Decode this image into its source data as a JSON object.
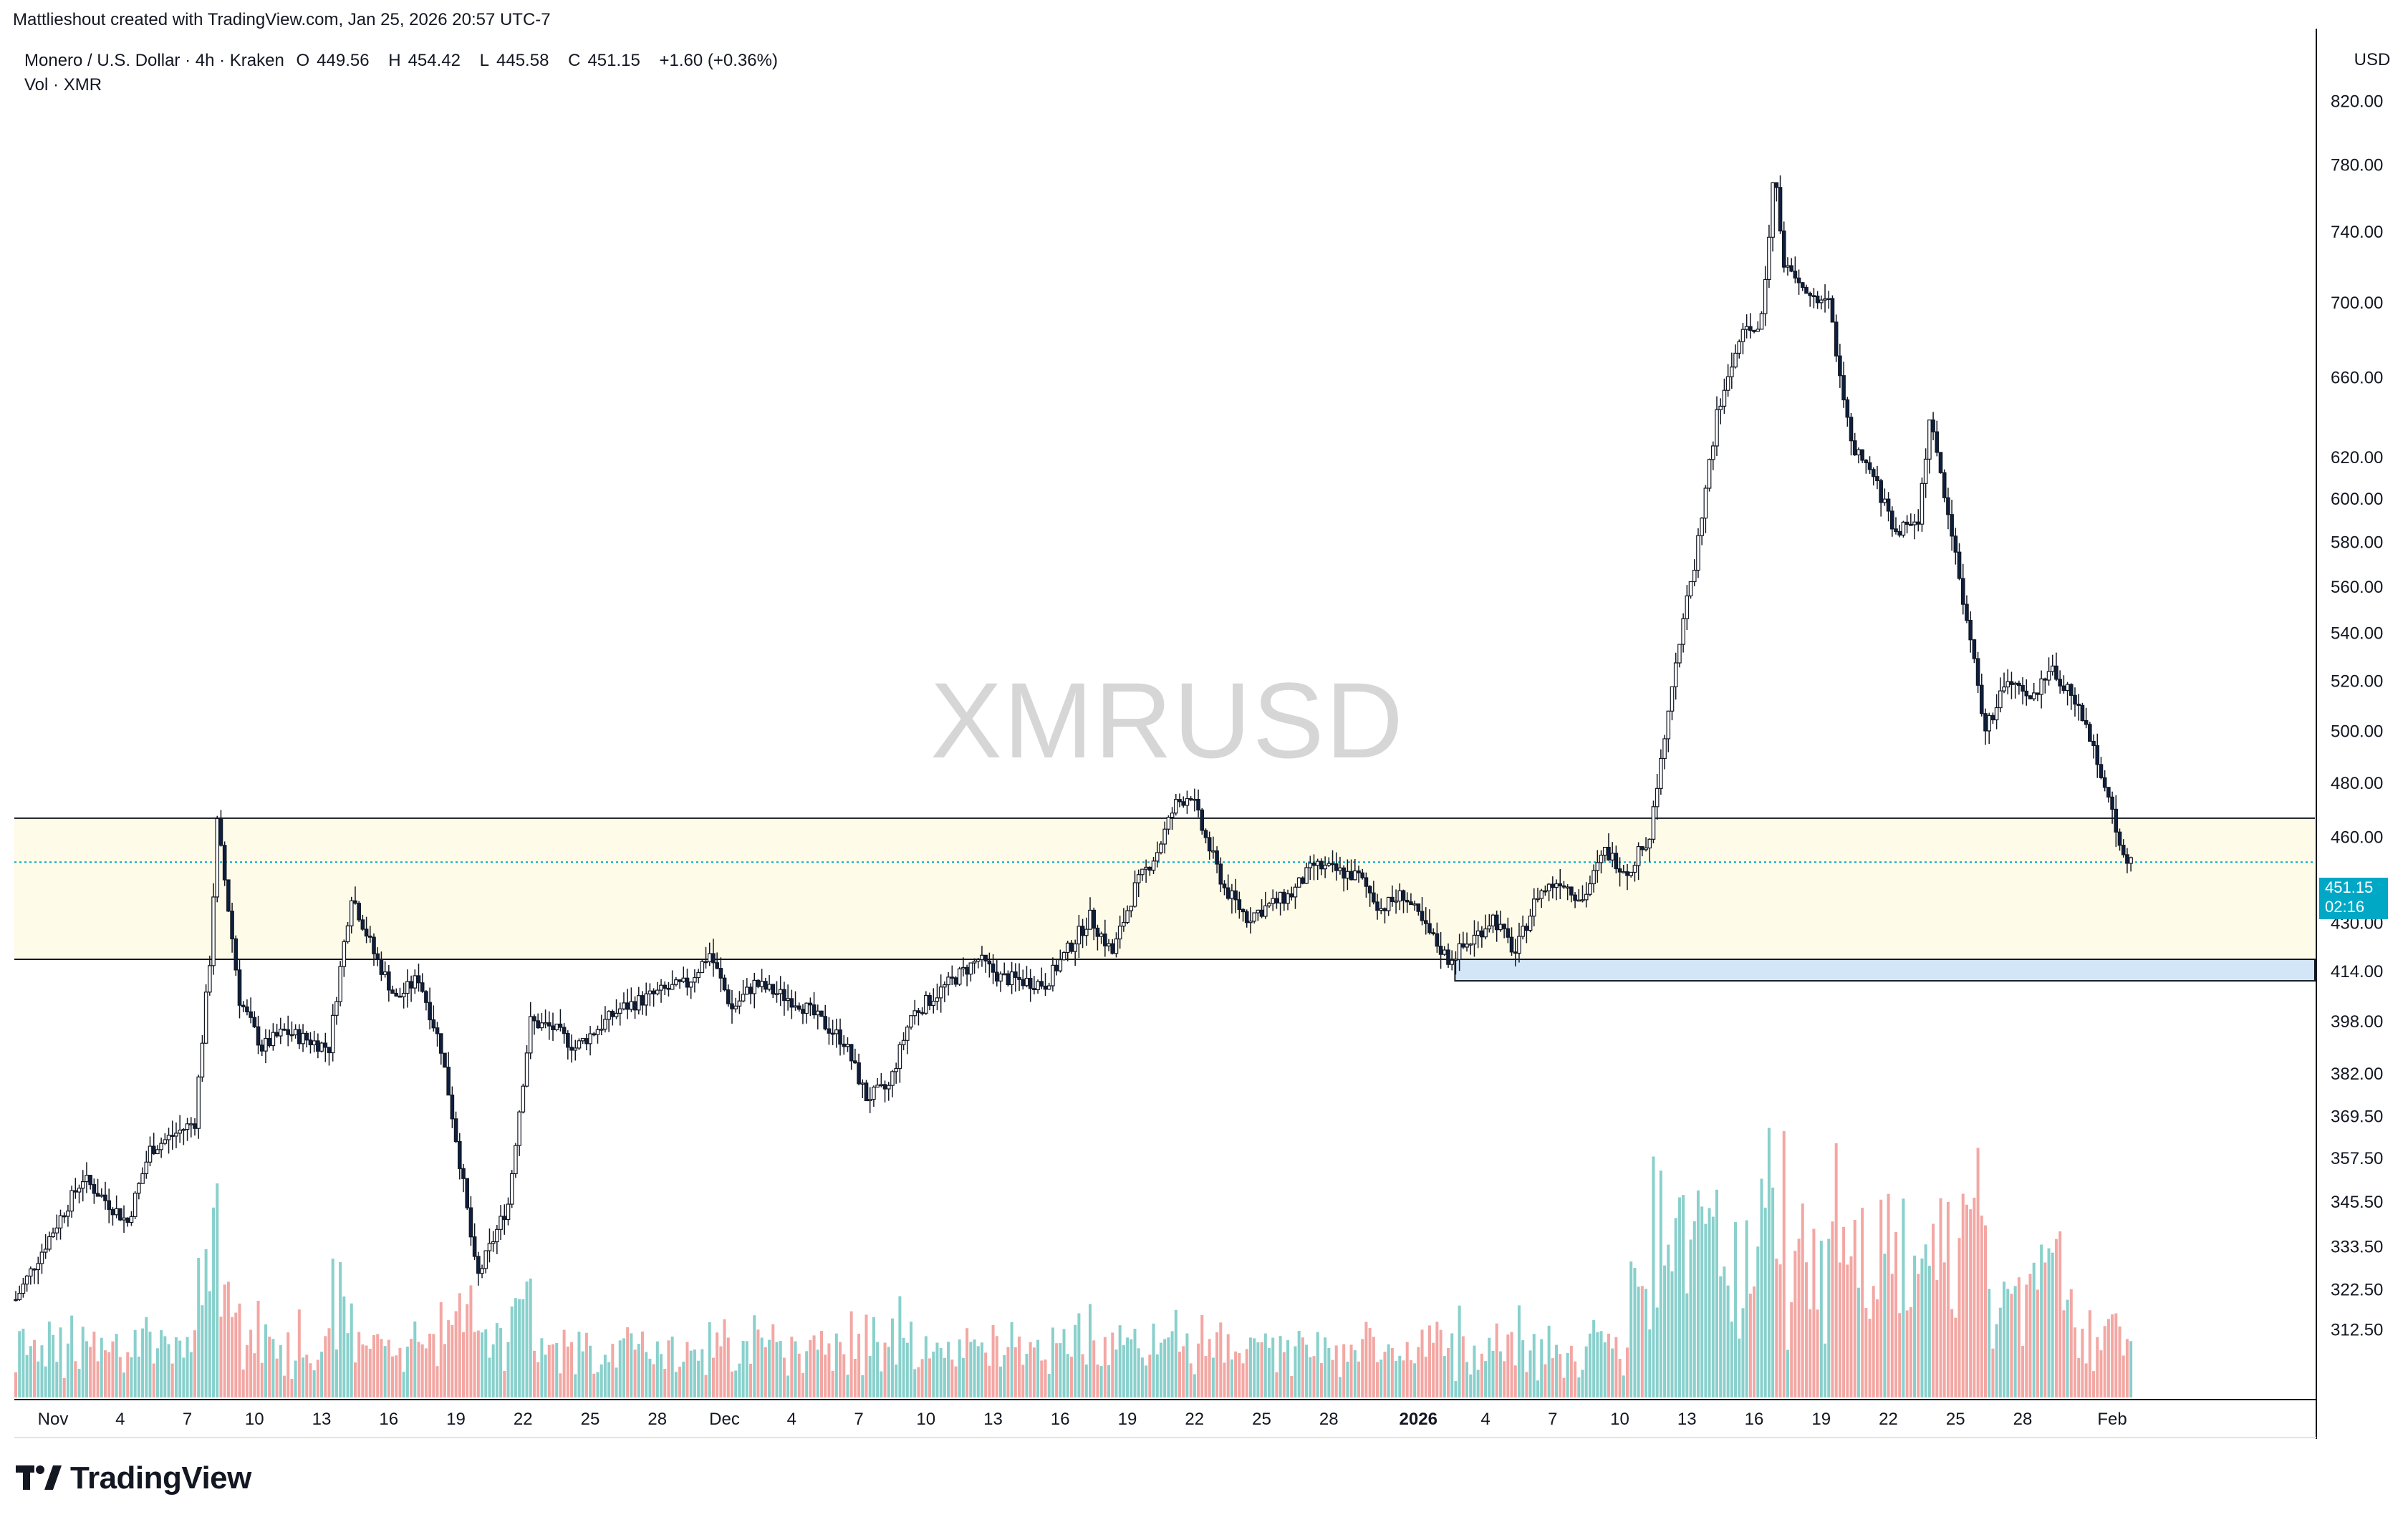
{
  "header": {
    "created_by": "Mattlieshout created with TradingView.com, Jan 25, 2026 20:57 UTC-7"
  },
  "legend": {
    "symbol": "Monero / U.S. Dollar · 4h · Kraken",
    "o_label": "O",
    "o_value": "449.56",
    "h_label": "H",
    "h_value": "454.42",
    "l_label": "L",
    "l_value": "445.58",
    "c_label": "C",
    "c_value": "451.15",
    "change": "+1.60 (+0.36%)",
    "volume": "Vol · XMR"
  },
  "watermark": "XMRUSD",
  "currency": "USD",
  "price_tag": {
    "price": "451.15",
    "countdown": "02:16"
  },
  "brand": {
    "name": "TradingView"
  },
  "colors": {
    "zone_fill": "#fffbe9",
    "support_box": "#d3e6f8",
    "price_line": "#00a8c6",
    "volume_up": "#89d0cc",
    "volume_down": "#f3a7a3",
    "candle_up": "#ffffff",
    "candle_down": "#0c1f3f"
  },
  "chart_data": {
    "type": "candlestick",
    "title": "XMRUSD",
    "timeframe": "4h",
    "ylim": [
      300,
      830
    ],
    "y_scale": "log",
    "y_ticks": [
      "820.00",
      "780.00",
      "740.00",
      "700.00",
      "660.00",
      "620.00",
      "600.00",
      "580.00",
      "560.00",
      "540.00",
      "520.00",
      "500.00",
      "480.00",
      "460.00",
      "430.00",
      "414.00",
      "398.00",
      "382.00",
      "369.50",
      "357.50",
      "345.50",
      "333.50",
      "322.50",
      "312.50"
    ],
    "x_ticks": [
      "Nov",
      "4",
      "7",
      "10",
      "13",
      "16",
      "19",
      "22",
      "25",
      "28",
      "Dec",
      "4",
      "7",
      "10",
      "13",
      "16",
      "19",
      "22",
      "25",
      "28",
      "2026",
      "4",
      "7",
      "10",
      "13",
      "16",
      "19",
      "22",
      "25",
      "28",
      "Feb"
    ],
    "zone": {
      "top": 467,
      "bottom": 418
    },
    "support_box": {
      "top": 418,
      "bottom": 411
    },
    "last_price": 451.15,
    "price_path": [
      {
        "day": 0,
        "price": 320
      },
      {
        "day": 3,
        "price": 352
      },
      {
        "day": 5,
        "price": 340
      },
      {
        "day": 6,
        "price": 360
      },
      {
        "day": 8,
        "price": 368
      },
      {
        "day": 8.7,
        "price": 420
      },
      {
        "day": 9,
        "price": 465
      },
      {
        "day": 10,
        "price": 405
      },
      {
        "day": 11,
        "price": 390
      },
      {
        "day": 12,
        "price": 395
      },
      {
        "day": 14,
        "price": 390
      },
      {
        "day": 15,
        "price": 440
      },
      {
        "day": 16,
        "price": 420
      },
      {
        "day": 17,
        "price": 405
      },
      {
        "day": 18,
        "price": 412
      },
      {
        "day": 19,
        "price": 390
      },
      {
        "day": 20,
        "price": 350
      },
      {
        "day": 20.6,
        "price": 325
      },
      {
        "day": 22,
        "price": 345
      },
      {
        "day": 23,
        "price": 398
      },
      {
        "day": 24,
        "price": 396
      },
      {
        "day": 25,
        "price": 390
      },
      {
        "day": 27,
        "price": 402
      },
      {
        "day": 29,
        "price": 408
      },
      {
        "day": 30,
        "price": 410
      },
      {
        "day": 31,
        "price": 420
      },
      {
        "day": 32,
        "price": 402
      },
      {
        "day": 33,
        "price": 410
      },
      {
        "day": 35,
        "price": 404
      },
      {
        "day": 37,
        "price": 392
      },
      {
        "day": 38,
        "price": 375
      },
      {
        "day": 39,
        "price": 378
      },
      {
        "day": 40,
        "price": 400
      },
      {
        "day": 42,
        "price": 412
      },
      {
        "day": 43,
        "price": 418
      },
      {
        "day": 44,
        "price": 412
      },
      {
        "day": 46,
        "price": 410
      },
      {
        "day": 48,
        "price": 432
      },
      {
        "day": 49,
        "price": 420
      },
      {
        "day": 50,
        "price": 442
      },
      {
        "day": 51,
        "price": 455
      },
      {
        "day": 51.8,
        "price": 472
      },
      {
        "day": 52.5,
        "price": 476
      },
      {
        "day": 53,
        "price": 463
      },
      {
        "day": 54,
        "price": 442
      },
      {
        "day": 55,
        "price": 432
      },
      {
        "day": 57,
        "price": 440
      },
      {
        "day": 58,
        "price": 450
      },
      {
        "day": 59,
        "price": 448
      },
      {
        "day": 60,
        "price": 446
      },
      {
        "day": 61,
        "price": 435
      },
      {
        "day": 62,
        "price": 440
      },
      {
        "day": 63,
        "price": 428
      },
      {
        "day": 64,
        "price": 418
      },
      {
        "day": 65,
        "price": 424
      },
      {
        "day": 66,
        "price": 432
      },
      {
        "day": 67,
        "price": 420
      },
      {
        "day": 68,
        "price": 440
      },
      {
        "day": 69,
        "price": 445
      },
      {
        "day": 70,
        "price": 438
      },
      {
        "day": 71,
        "price": 455
      },
      {
        "day": 72,
        "price": 448
      },
      {
        "day": 73,
        "price": 460
      },
      {
        "day": 74,
        "price": 520
      },
      {
        "day": 75,
        "price": 570
      },
      {
        "day": 76,
        "price": 640
      },
      {
        "day": 77,
        "price": 680
      },
      {
        "day": 78,
        "price": 690
      },
      {
        "day": 78.6,
        "price": 780
      },
      {
        "day": 79,
        "price": 720
      },
      {
        "day": 80,
        "price": 705
      },
      {
        "day": 81,
        "price": 700
      },
      {
        "day": 82,
        "price": 625
      },
      {
        "day": 83,
        "price": 610
      },
      {
        "day": 84,
        "price": 585
      },
      {
        "day": 85,
        "price": 590
      },
      {
        "day": 85.5,
        "price": 638
      },
      {
        "day": 86,
        "price": 612
      },
      {
        "day": 87,
        "price": 555
      },
      {
        "day": 88,
        "price": 500
      },
      {
        "day": 89,
        "price": 520
      },
      {
        "day": 90,
        "price": 512
      },
      {
        "day": 91,
        "price": 525
      },
      {
        "day": 92,
        "price": 512
      },
      {
        "day": 93,
        "price": 490
      },
      {
        "day": 94,
        "price": 458
      },
      {
        "day": 94.5,
        "price": 451.15
      }
    ]
  }
}
